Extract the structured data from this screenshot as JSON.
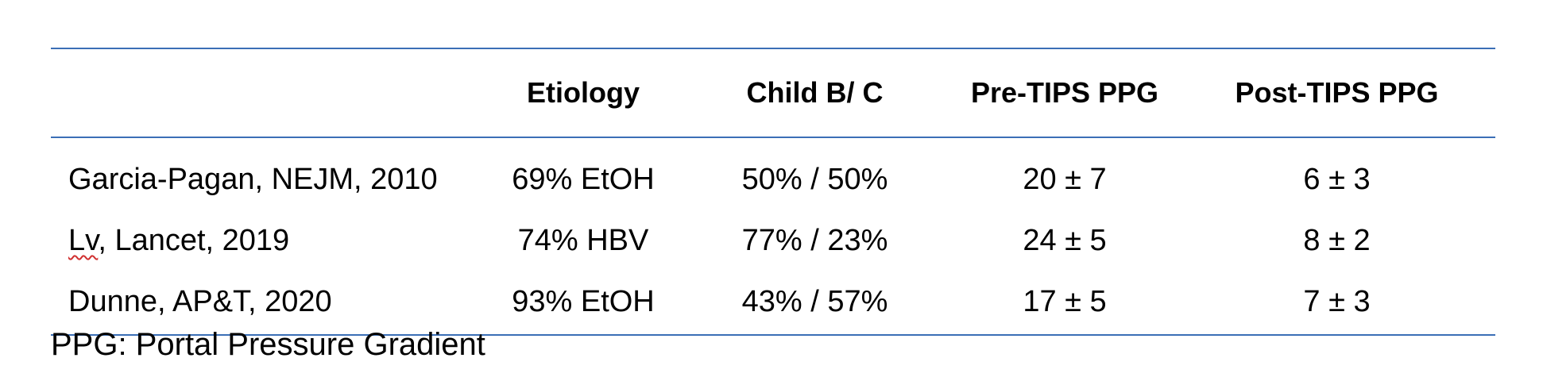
{
  "table": {
    "headers": [
      "",
      "Etiology",
      "Child B/ C",
      "Pre-TIPS PPG",
      "Post-TIPS PPG"
    ],
    "rows": [
      {
        "study_first": "Garcia-Pagan",
        "study_rest": ", NEJM, 2010",
        "etiology": "69% EtOH",
        "child": "50% / 50%",
        "pre_ppg": "20 ± 7",
        "post_ppg": "6 ± 3"
      },
      {
        "study_first": "Lv",
        "study_rest": ", Lancet, 2019",
        "etiology": "74% HBV",
        "child": "77% / 23%",
        "pre_ppg": "24 ± 5",
        "post_ppg": "8 ± 2"
      },
      {
        "study_first": "Dunne",
        "study_rest": ", AP&T, 2020",
        "etiology": "93% EtOH",
        "child": "43% / 57%",
        "pre_ppg": "17 ± 5",
        "post_ppg": "7 ± 3"
      }
    ],
    "rule_color": "#3b6fb6",
    "spellcheck_color": "#d03030"
  },
  "footnote": "PPG: Portal Pressure Gradient"
}
